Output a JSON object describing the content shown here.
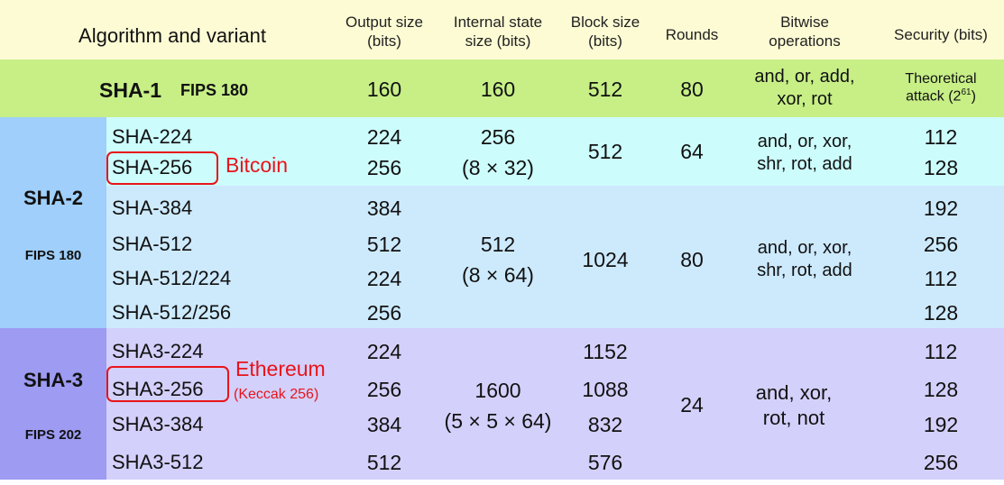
{
  "headers": {
    "algorithm": "Algorithm and variant",
    "output_size": "Output size\n(bits)",
    "internal_state": "Internal state\nsize (bits)",
    "block_size": "Block size\n(bits)",
    "rounds": "Rounds",
    "bitwise": "Bitwise\noperations",
    "security": "Security (bits)"
  },
  "sha1": {
    "name": "SHA-1",
    "fips": "FIPS 180",
    "output": "160",
    "state": "160",
    "block": "512",
    "rounds": "80",
    "ops": "and, or, add,\nxor, rot",
    "security_pre": "Theoretical\nattack (2",
    "security_exp": "61",
    "security_post": ")"
  },
  "sha2": {
    "family": "SHA-2",
    "fips": "FIPS 180",
    "groupA": {
      "state": "256",
      "state_formula": "(8 × 32)",
      "block": "512",
      "rounds": "64",
      "ops": "and, or, xor,\nshr, rot, add"
    },
    "groupB": {
      "state": "512",
      "state_formula": "(8 × 64)",
      "block": "1024",
      "rounds": "80",
      "ops": "and, or, xor,\nshr, rot, add"
    },
    "rows": [
      {
        "name": "SHA-224",
        "output": "224",
        "security": "112"
      },
      {
        "name": "SHA-256",
        "output": "256",
        "security": "128"
      },
      {
        "name": "SHA-384",
        "output": "384",
        "security": "192"
      },
      {
        "name": "SHA-512",
        "output": "512",
        "security": "256"
      },
      {
        "name": "SHA-512/224",
        "output": "224",
        "security": "112"
      },
      {
        "name": "SHA-512/256",
        "output": "256",
        "security": "128"
      }
    ],
    "annotation": "Bitcoin"
  },
  "sha3": {
    "family": "SHA-3",
    "fips": "FIPS 202",
    "state": "1600",
    "state_formula": "(5 × 5 × 64)",
    "rounds": "24",
    "ops": "and, xor,\nrot, not",
    "rows": [
      {
        "name": "SHA3-224",
        "output": "224",
        "block": "1152",
        "security": "112"
      },
      {
        "name": "SHA3-256",
        "output": "256",
        "block": "1088",
        "security": "128"
      },
      {
        "name": "SHA3-384",
        "output": "384",
        "block": "832",
        "security": "192"
      },
      {
        "name": "SHA3-512",
        "output": "512",
        "block": "576",
        "security": "256"
      }
    ],
    "annotation": "Ethereum",
    "annotation_sub": "(Keccak 256)"
  },
  "colors": {
    "header": "#fcfbd4",
    "sha1": "#c7ef86",
    "sha2_top": "#cdfcfc",
    "sha2_bottom": "#cdeafd",
    "sha2_family": "#9fcffa",
    "sha3": "#d3d0fb",
    "sha3_family": "#9d9bf2",
    "highlight": "#e8141a"
  }
}
